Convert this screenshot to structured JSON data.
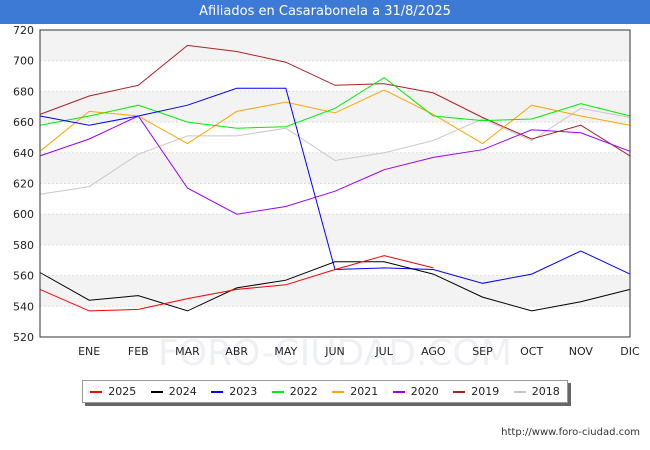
{
  "title": "Afiliados en Casarabonela a 31/8/2025",
  "footer_url": "http://www.foro-ciudad.com",
  "watermark": "FORO-CIUDAD.COM",
  "chart_data": {
    "type": "line",
    "categories": [
      "",
      "ENE",
      "FEB",
      "MAR",
      "ABR",
      "MAY",
      "JUN",
      "JUL",
      "AGO",
      "SEP",
      "OCT",
      "NOV",
      "DIC"
    ],
    "ylim": [
      520,
      720
    ],
    "yticks": [
      520,
      540,
      560,
      580,
      600,
      620,
      640,
      660,
      680,
      700,
      720
    ],
    "legend_position": "bottom",
    "grid": "alternating horizontal bands",
    "series": [
      {
        "name": "2025",
        "color": "#ff0000",
        "values": [
          551,
          537,
          538,
          545,
          551,
          554,
          564,
          573,
          565,
          null,
          null,
          null,
          null
        ]
      },
      {
        "name": "2024",
        "color": "#000000",
        "values": [
          562,
          544,
          547,
          537,
          552,
          557,
          569,
          569,
          561,
          546,
          537,
          543,
          551
        ]
      },
      {
        "name": "2023",
        "color": "#0000ff",
        "values": [
          664,
          658,
          664,
          671,
          682,
          682,
          564,
          565,
          564,
          555,
          561,
          576,
          561
        ]
      },
      {
        "name": "2022",
        "color": "#00ee00",
        "values": [
          658,
          664,
          671,
          660,
          656,
          657,
          669,
          689,
          664,
          661,
          662,
          672,
          664
        ]
      },
      {
        "name": "2021",
        "color": "#ffa500",
        "values": [
          641,
          667,
          664,
          646,
          667,
          673,
          666,
          681,
          665,
          646,
          671,
          664,
          658
        ]
      },
      {
        "name": "2020",
        "color": "#9900ff",
        "values": [
          638,
          649,
          664,
          617,
          600,
          605,
          615,
          629,
          637,
          642,
          655,
          653,
          641
        ]
      },
      {
        "name": "2019",
        "color": "#aa2222",
        "values": [
          665,
          677,
          684,
          710,
          706,
          699,
          684,
          685,
          679,
          663,
          649,
          658,
          638
        ]
      },
      {
        "name": "2018",
        "color": "#c8c8c8",
        "values": [
          613,
          618,
          639,
          651,
          651,
          656,
          635,
          640,
          648,
          662,
          648,
          669,
          663
        ]
      }
    ]
  }
}
